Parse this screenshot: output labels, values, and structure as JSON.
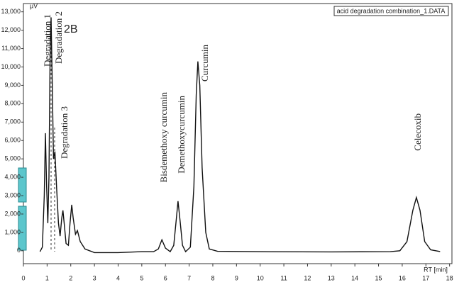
{
  "chart_data": {
    "type": "line",
    "y_unit": "µV",
    "x_label": "RT [min]",
    "panel_label": "2B",
    "legend_text": "acid degradation combination_1.DATA",
    "annotations": [
      "Degradation 1",
      "Degradation 2",
      "Degradation 3",
      "Bisdemethoxy curcumin",
      "Demethoxycurcumin",
      "Curcumin",
      "Celecoxib"
    ],
    "x": [
      0.7,
      0.8,
      0.88,
      0.93,
      0.98,
      1.03,
      1.08,
      1.13,
      1.17,
      1.22,
      1.27,
      1.33,
      1.4,
      1.48,
      1.55,
      1.62,
      1.67,
      1.73,
      1.8,
      1.9,
      1.97,
      2.04,
      2.1,
      2.2,
      2.28,
      2.4,
      2.6,
      3.0,
      4,
      5,
      5.5,
      5.7,
      5.85,
      6.0,
      6.2,
      6.35,
      6.45,
      6.53,
      6.62,
      6.72,
      6.85,
      7.05,
      7.2,
      7.3,
      7.37,
      7.45,
      7.55,
      7.7,
      7.85,
      8.2,
      10,
      13,
      15.5,
      15.9,
      16.2,
      16.45,
      16.6,
      16.75,
      16.95,
      17.2,
      17.6
    ],
    "series": [
      {
        "color": "#111111",
        "values": [
          -50,
          200,
          3000,
          6400,
          3500,
          1500,
          4000,
          11000,
          12700,
          9000,
          5000,
          5400,
          3500,
          1500,
          800,
          1800,
          2200,
          1400,
          400,
          300,
          1500,
          2500,
          1800,
          900,
          1100,
          500,
          100,
          -100,
          -100,
          -50,
          -50,
          100,
          600,
          150,
          -50,
          300,
          1600,
          2700,
          1600,
          300,
          -50,
          200,
          3500,
          8500,
          10300,
          9000,
          4500,
          1000,
          100,
          -30,
          -50,
          -60,
          -50,
          0,
          500,
          2200,
          2900,
          2200,
          500,
          50,
          -40
        ]
      }
    ],
    "xlim": [
      0,
      18.1
    ],
    "ylim": [
      -700,
      13450
    ],
    "xticks": [
      0,
      1,
      2,
      3,
      4,
      5,
      6,
      7,
      8,
      9,
      10,
      11,
      12,
      13,
      14,
      15,
      16,
      17,
      18
    ],
    "yticks": [
      {
        "value": 13000,
        "label": "13,000"
      },
      {
        "value": 12000,
        "label": "12,000"
      },
      {
        "value": 11000,
        "label": "11,000"
      },
      {
        "value": 10000,
        "label": "10,000"
      },
      {
        "value": 9000,
        "label": "9,000"
      },
      {
        "value": 8000,
        "label": "8,000"
      },
      {
        "value": 7000,
        "label": "7,000"
      },
      {
        "value": 6000,
        "label": "6,000"
      },
      {
        "value": 5000,
        "label": "5,000"
      },
      {
        "value": 4000,
        "label": "4,000"
      },
      {
        "value": 3000,
        "label": "3,000"
      },
      {
        "value": 2000,
        "label": "2,000"
      },
      {
        "value": 1000,
        "label": "1,000"
      },
      0
    ]
  }
}
